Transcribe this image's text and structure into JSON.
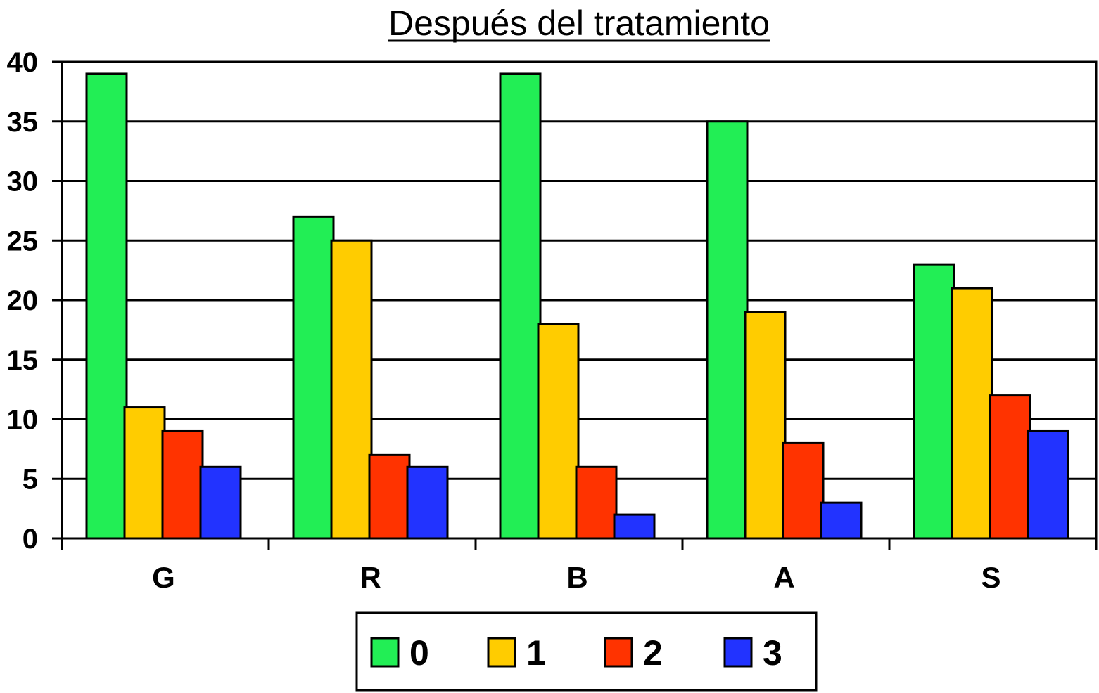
{
  "chart_data": {
    "type": "bar",
    "title": "Después del tratamiento",
    "xlabel": "",
    "ylabel": "",
    "categories": [
      "G",
      "R",
      "B",
      "A",
      "S"
    ],
    "series": [
      {
        "name": "0",
        "color": "#22ee55",
        "values": [
          39,
          27,
          39,
          35,
          23
        ]
      },
      {
        "name": "1",
        "color": "#ffcc00",
        "values": [
          11,
          25,
          18,
          19,
          21
        ]
      },
      {
        "name": "2",
        "color": "#ff3300",
        "values": [
          9,
          7,
          6,
          8,
          12
        ]
      },
      {
        "name": "3",
        "color": "#2233ff",
        "values": [
          6,
          6,
          2,
          3,
          9
        ]
      }
    ],
    "ylim": [
      0,
      40
    ],
    "yticks": [
      0,
      5,
      10,
      15,
      20,
      25,
      30,
      35,
      40
    ],
    "grid": true,
    "legend_position": "bottom"
  }
}
